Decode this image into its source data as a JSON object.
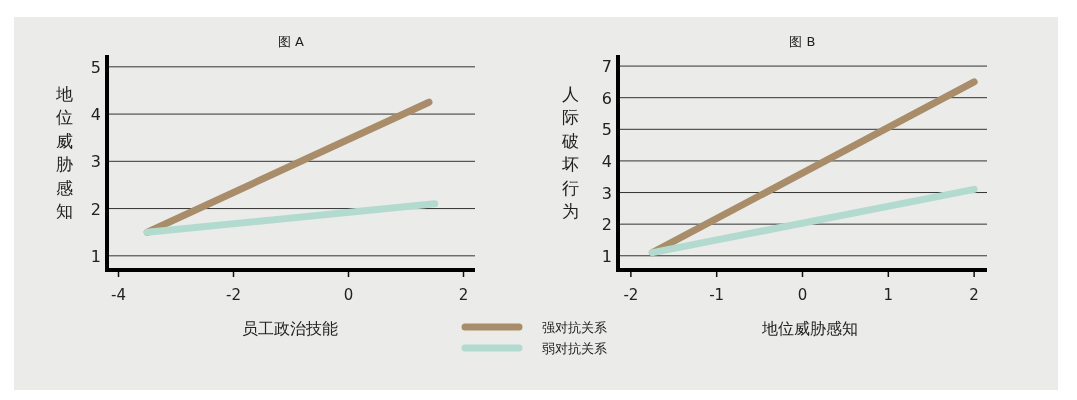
{
  "chart_data": [
    {
      "type": "line",
      "title": "图 A",
      "xlabel": "员工政治技能",
      "ylabel": "地位威胁感知",
      "xlim": [
        -4.2,
        2.2
      ],
      "ylim": [
        0.7,
        5.25
      ],
      "xticks": [
        -4,
        -2,
        0,
        2
      ],
      "yticks": [
        1,
        2,
        3,
        4,
        5
      ],
      "grid": "y",
      "legend": "bottom",
      "series": [
        {
          "name": "强对抗关系",
          "color": "#a88d68",
          "x": [
            -3.5,
            1.4
          ],
          "values": [
            1.5,
            4.25
          ]
        },
        {
          "name": "弱对抗关系",
          "color": "#b2dbd0",
          "x": [
            -3.5,
            1.5
          ],
          "values": [
            1.5,
            2.1
          ]
        }
      ]
    },
    {
      "type": "line",
      "title": "图 B",
      "xlabel": "地位威胁感知",
      "ylabel": "人际破坏行为",
      "xlim": [
        -2.15,
        2.15
      ],
      "ylim": [
        0.55,
        7.35
      ],
      "xticks": [
        -2,
        -1,
        0,
        1,
        2
      ],
      "yticks": [
        1,
        2,
        3,
        4,
        5,
        6,
        7
      ],
      "grid": "y",
      "series": [
        {
          "color": "#a88d68",
          "x": [
            -1.75,
            2
          ],
          "values": [
            1.1,
            6.5
          ]
        },
        {
          "color": "#b2dbd0",
          "x": [
            -1.75,
            2
          ],
          "values": [
            1.1,
            3.1
          ]
        }
      ]
    }
  ]
}
